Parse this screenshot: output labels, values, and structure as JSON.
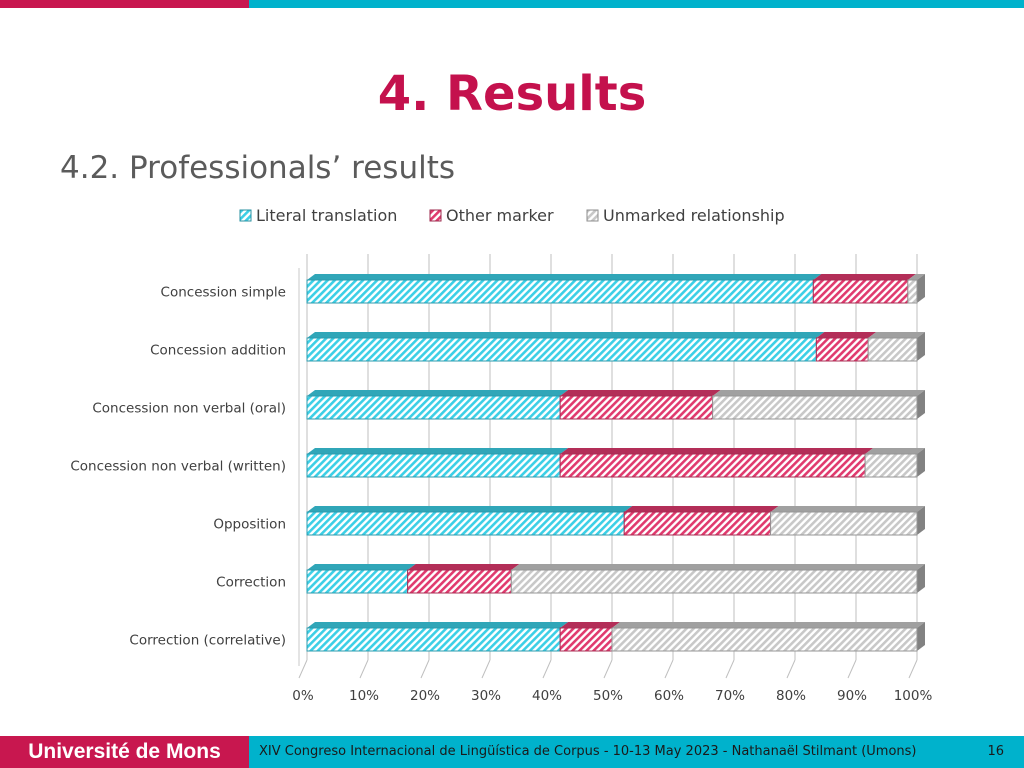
{
  "slide": {
    "title": "4. Results",
    "subtitle": "4.2. Professionals’ results"
  },
  "footer": {
    "institution": "Université de Mons",
    "text": "XIV Congreso Internacional de Lingüística de Corpus - 10-13 May 2023 - Nathanaël Stilmant (Umons)",
    "page_number": "16"
  },
  "colors": {
    "brand_red": "#c8174f",
    "brand_cyan": "#00b2cc"
  },
  "chart_data": {
    "type": "bar",
    "orientation": "horizontal",
    "stacked": "100%",
    "categories": [
      "Concession simple",
      "Concession addition",
      "Concession non verbal (oral)",
      "Concession non verbal (written)",
      "Opposition",
      "Correction",
      "Correction (correlative)"
    ],
    "series": [
      {
        "name": "Literal translation",
        "color": "#3ccfe6",
        "values": [
          83,
          83.5,
          41.5,
          41.5,
          52,
          16.5,
          41.5
        ]
      },
      {
        "name": "Other marker",
        "color": "#e03a6e",
        "values": [
          15.5,
          8.5,
          25,
          50,
          24,
          17,
          8.5
        ]
      },
      {
        "name": "Unmarked relationship",
        "color": "#c8c8c8",
        "values": [
          1.5,
          8,
          33.5,
          8.5,
          24,
          66.5,
          50
        ]
      }
    ],
    "x_ticks": [
      "0%",
      "10%",
      "20%",
      "30%",
      "40%",
      "50%",
      "60%",
      "70%",
      "80%",
      "90%",
      "100%"
    ],
    "xlim": [
      0,
      100
    ],
    "legend_position": "top",
    "grid": true,
    "style": "3d-hatched"
  }
}
